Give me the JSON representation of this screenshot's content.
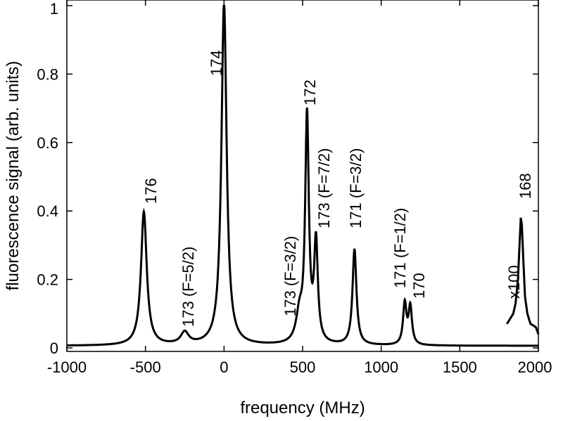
{
  "chart_data": {
    "type": "line",
    "title": "",
    "xlabel": "frequency (MHz)",
    "ylabel": "fluorescence signal (arb. units)",
    "xlim": [
      -1000,
      2000
    ],
    "ylim": [
      0,
      1
    ],
    "grid": false,
    "x_ticks": [
      "-1000",
      "-500",
      "0",
      "500",
      "1000",
      "1500",
      "2000"
    ],
    "y_ticks": [
      "0",
      "0.2",
      "0.4",
      "0.6",
      "0.8",
      "1"
    ],
    "peaks": [
      {
        "x": -510,
        "y": 0.39,
        "label": "176"
      },
      {
        "x": -250,
        "y": 0.035,
        "label": "173 (F=5/2)"
      },
      {
        "x": 0,
        "y": 1.0,
        "label": "174"
      },
      {
        "x": 480,
        "y": 0.08,
        "label": "173 (F=3/2)"
      },
      {
        "x": 528,
        "y": 0.66,
        "label": "172"
      },
      {
        "x": 585,
        "y": 0.29,
        "label": "173 (F=7/2)"
      },
      {
        "x": 830,
        "y": 0.28,
        "label": "171 (F=3/2)"
      },
      {
        "x": 1150,
        "y": 0.12,
        "label": "171 (F=1/2)"
      },
      {
        "x": 1185,
        "y": 0.11,
        "label": "170"
      }
    ],
    "inset_trace": {
      "label": "x100",
      "peak_label": "168",
      "x": [
        1800,
        1820,
        1840,
        1855,
        1870,
        1880,
        1888,
        1895,
        1905,
        1915,
        1930,
        1950,
        1970,
        1985,
        2000
      ],
      "y": [
        0.07,
        0.085,
        0.1,
        0.13,
        0.2,
        0.3,
        0.38,
        0.36,
        0.25,
        0.15,
        0.1,
        0.07,
        0.065,
        0.06,
        0.04
      ]
    }
  }
}
